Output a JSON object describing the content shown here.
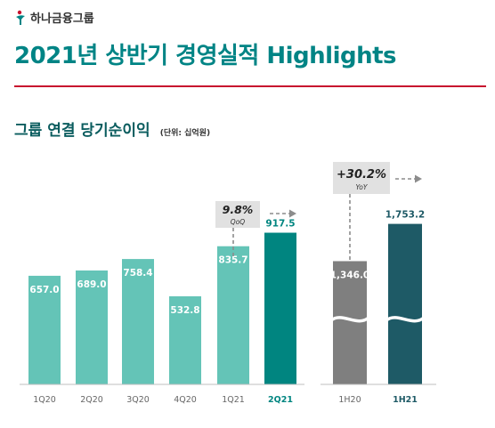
{
  "header": {
    "logo_text": "하나금융그룹",
    "title": "2021년 상반기 경영실적 Highlights"
  },
  "section": {
    "title": "그룹 연결 당기순이익",
    "unit": "(단위: 십억원)"
  },
  "colors": {
    "title": "#008485",
    "rule": "#c8102e",
    "bar_light": "#64c4b7",
    "bar_highlight": "#008580",
    "bar_gray": "#7f7f7f",
    "bar_dark": "#1e5a66"
  },
  "chart_data": [
    {
      "type": "bar",
      "categories": [
        "1Q20",
        "2Q20",
        "3Q20",
        "4Q20",
        "1Q21",
        "2Q21"
      ],
      "values": [
        657.0,
        689.0,
        758.4,
        532.8,
        835.7,
        917.5
      ],
      "value_labels": [
        "657.0",
        "689.0",
        "758.4",
        "532.8",
        "835.7",
        "917.5"
      ],
      "highlight_index": 5,
      "annotation": {
        "value": "9.8%",
        "label": "QoQ"
      }
    },
    {
      "type": "bar",
      "categories": [
        "1H20",
        "1H21"
      ],
      "values": [
        1346.0,
        1753.2
      ],
      "value_labels": [
        "1,346.0",
        "1,753.2"
      ],
      "axis_break": true,
      "annotation": {
        "value": "+30.2%",
        "label": "YoY"
      }
    }
  ]
}
